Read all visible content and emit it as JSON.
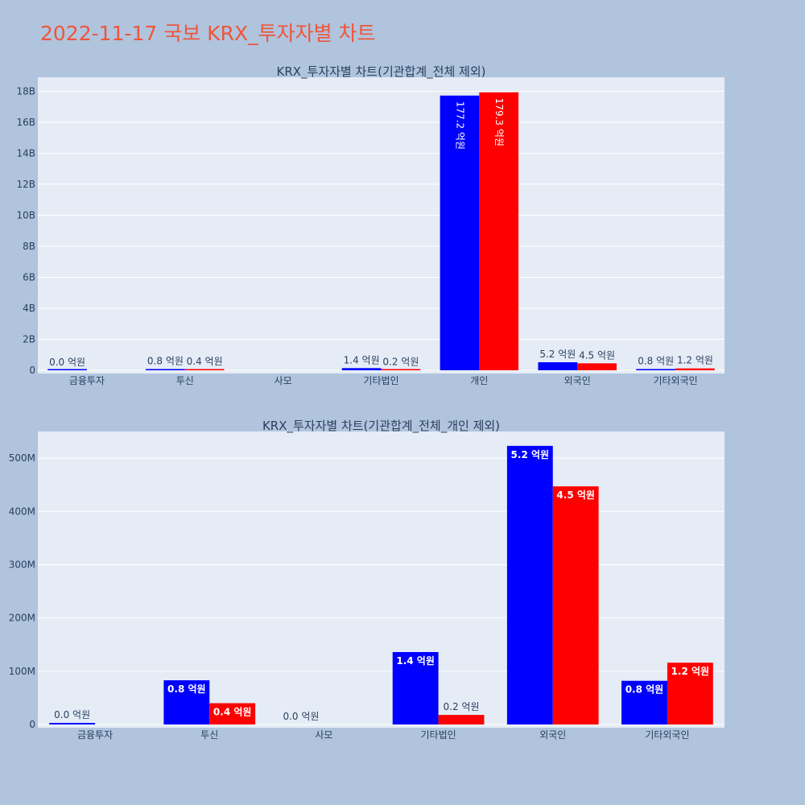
{
  "page_title": "2022-11-17 국보 KRX_투자자별 차트",
  "colors": {
    "title": "#ef553b",
    "series_a": "#0000ff",
    "series_b": "#ff0000",
    "plot_bg": "#e5ecf6",
    "page_bg": "#b0c4de"
  },
  "chart_data": [
    {
      "type": "bar",
      "title": "KRX_투자자별 차트(기관합계_전체 제외)",
      "categories": [
        "금융투자",
        "투신",
        "사모",
        "기타법인",
        "개인",
        "외국인",
        "기타외국인"
      ],
      "series": [
        {
          "values": [
            0.004,
            0.08,
            null,
            0.14,
            17.72,
            0.52,
            0.08
          ],
          "labels": [
            "0.0 억원",
            "0.8 억원",
            "",
            "1.4 억원",
            "177.2 억원",
            "5.2 억원",
            "0.8 억원"
          ]
        },
        {
          "values": [
            null,
            0.04,
            null,
            0.02,
            17.93,
            0.45,
            0.12
          ],
          "labels": [
            "",
            "0.4 억원",
            "",
            "0.2 억원",
            "179.3 억원",
            "4.5 억원",
            "1.2 억원"
          ]
        }
      ],
      "y_unit": "B",
      "ylim": [
        0,
        18.9
      ],
      "yticks": [
        0,
        2,
        4,
        6,
        8,
        10,
        12,
        14,
        16,
        18
      ],
      "ytick_labels": [
        "0",
        "2B",
        "4B",
        "6B",
        "8B",
        "10B",
        "12B",
        "14B",
        "16B",
        "18B"
      ],
      "grid": true,
      "legend": "none"
    },
    {
      "type": "bar",
      "title": "KRX_투자자별 차트(기관합계_전체_개인 제외)",
      "categories": [
        "금융투자",
        "투신",
        "사모",
        "기타법인",
        "외국인",
        "기타외국인"
      ],
      "series": [
        {
          "values": [
            3,
            83,
            0,
            136,
            523,
            82
          ],
          "labels": [
            "0.0 억원",
            "0.8 억원",
            "0.0 억원",
            "1.4 억원",
            "5.2 억원",
            "0.8 억원"
          ]
        },
        {
          "values": [
            null,
            40,
            null,
            18,
            447,
            116
          ],
          "labels": [
            "",
            "0.4 억원",
            "",
            "0.2 억원",
            "4.5 억원",
            "1.2 억원"
          ]
        }
      ],
      "y_unit": "M",
      "ylim": [
        0,
        550
      ],
      "yticks": [
        0,
        100,
        200,
        300,
        400,
        500
      ],
      "ytick_labels": [
        "0",
        "100M",
        "200M",
        "300M",
        "400M",
        "500M"
      ],
      "grid": true,
      "legend": "none"
    }
  ]
}
